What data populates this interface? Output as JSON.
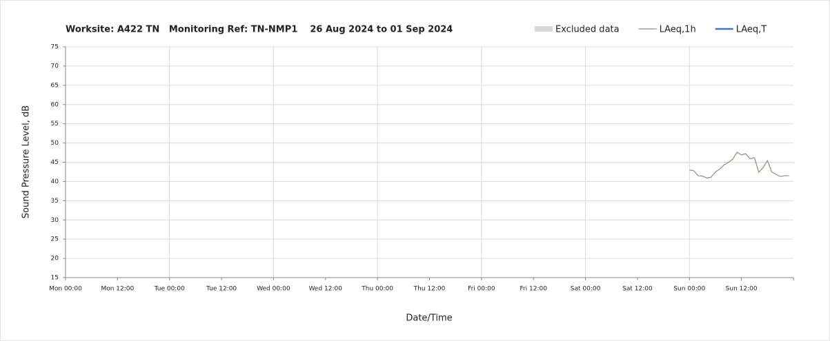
{
  "chart_data": {
    "type": "line",
    "title": "Worksite: A422 TN   Monitoring Ref: TN-NMP1    26 Aug 2024 to 01 Sep 2024",
    "y_label": "Sound Pressure Level, dB",
    "x_label": "Date/Time",
    "x": [
      144,
      145,
      146,
      147,
      148,
      149,
      150,
      151,
      152,
      153,
      154,
      155,
      156,
      157,
      158,
      159,
      160,
      161,
      162,
      163,
      164,
      165,
      166,
      167
    ],
    "series": [
      {
        "name": "Excluded data",
        "color": "#d9d9d9",
        "style": "band",
        "values": [
          null,
          null,
          null,
          null,
          null,
          null,
          null,
          null,
          null,
          null,
          null,
          null,
          null,
          null,
          null,
          null,
          null,
          null,
          null,
          null,
          null,
          null,
          null,
          null
        ]
      },
      {
        "name": "LAeq,1h",
        "color": "#8a9270",
        "style": "thin",
        "values": [
          43.0,
          42.8,
          41.5,
          41.4,
          40.9,
          41.1,
          42.5,
          43.2,
          44.3,
          45.0,
          45.8,
          47.6,
          46.9,
          47.2,
          45.9,
          46.2,
          42.4,
          43.6,
          45.4,
          42.5,
          41.8,
          41.3,
          41.5,
          41.5
        ]
      },
      {
        "name": "LAeq,T",
        "color": "#4472c4",
        "style": "thick",
        "values": [
          null,
          null,
          null,
          null,
          null,
          null,
          null,
          null,
          null,
          null,
          null,
          null,
          null,
          null,
          null,
          null,
          null,
          null,
          null,
          null,
          null,
          null,
          null,
          null
        ]
      }
    ],
    "xlim": [
      0,
      168
    ],
    "xticks": [
      {
        "value": 0,
        "label": "Mon 00:00"
      },
      {
        "value": 12,
        "label": "Mon 12:00"
      },
      {
        "value": 24,
        "label": "Tue 00:00"
      },
      {
        "value": 36,
        "label": "Tue 12:00"
      },
      {
        "value": 48,
        "label": "Wed 00:00"
      },
      {
        "value": 60,
        "label": "Wed 12:00"
      },
      {
        "value": 72,
        "label": "Thu 00:00"
      },
      {
        "value": 84,
        "label": "Thu 12:00"
      },
      {
        "value": 96,
        "label": "Fri 00:00"
      },
      {
        "value": 108,
        "label": "Fri 12:00"
      },
      {
        "value": 120,
        "label": "Sat 00:00"
      },
      {
        "value": 132,
        "label": "Sat 12:00"
      },
      {
        "value": 144,
        "label": "Sun 00:00"
      },
      {
        "value": 156,
        "label": "Sun 12:00"
      }
    ],
    "ylim": [
      15,
      75
    ],
    "yticks": [
      15,
      20,
      25,
      30,
      35,
      40,
      45,
      50,
      55,
      60,
      65,
      70,
      75
    ],
    "grid": true
  }
}
